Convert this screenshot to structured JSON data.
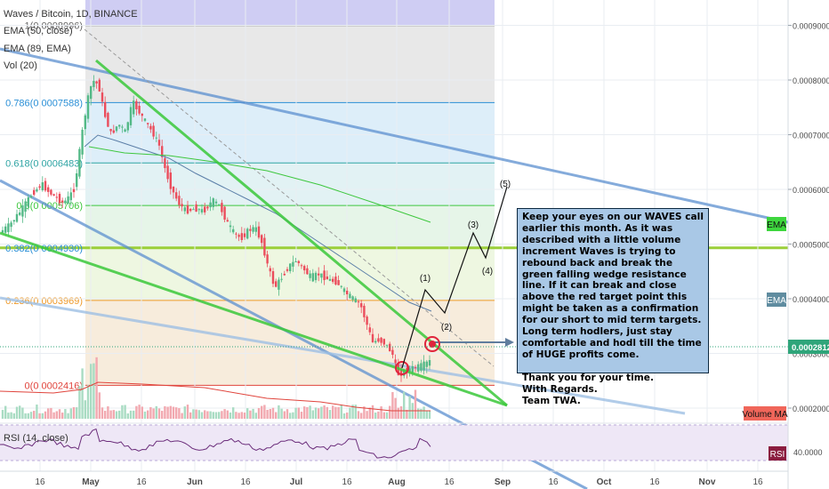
{
  "header": {
    "symbol_line": "Waves / Bitcoin, 1D, BINANCE",
    "indicators": [
      "EMA (50, close)",
      "EMA (89, EMA)",
      "Vol (20)"
    ]
  },
  "chart_data": {
    "type": "candlestick",
    "symbol": "Waves / Bitcoin",
    "interval": "1D",
    "exchange": "BINANCE",
    "x_ticks": [
      "16",
      "May",
      "16",
      "Jun",
      "16",
      "Jul",
      "16",
      "Aug",
      "16",
      "Sep",
      "16",
      "Oct",
      "16",
      "Nov",
      "16"
    ],
    "y_ticks": [
      "0.00090000",
      "0.00080000",
      "0.00070000",
      "0.00060000",
      "0.00050000",
      "0.00040000",
      "0.00030000",
      "0.00020000"
    ],
    "ylim": [
      0.00016,
      0.00095
    ],
    "current_price": "0.0002812",
    "fib_levels": [
      {
        "ratio": "1",
        "price": 0.0008996,
        "label": "1(0.0008996)"
      },
      {
        "ratio": "0.786",
        "price": 0.0007588,
        "label": "0.786(0.0007588)"
      },
      {
        "ratio": "0.618",
        "price": 0.0006483,
        "label": "0.618(0.0006483)"
      },
      {
        "ratio": "0.5",
        "price": 0.0005706,
        "label": "0.5(0.0005706)"
      },
      {
        "ratio": "0.382",
        "price": 0.000493,
        "label": "0.382(0.0004930)"
      },
      {
        "ratio": "0.236",
        "price": 0.0003969,
        "label": "0.236(0.0003969)"
      },
      {
        "ratio": "0",
        "price": 0.0002416,
        "label": "0(0.0002416)"
      }
    ],
    "axis_badges": [
      "EMA",
      "EMA",
      "Volume MA",
      "RSI"
    ],
    "wave_labels": [
      "(1)",
      "(2)",
      "(3)",
      "(4)",
      "(5)"
    ],
    "rsi_label": "RSI (14, close)",
    "rsi_tick": "40.0000",
    "grid": true
  },
  "annotation": {
    "paragraphs": [
      "Keep your eyes on our WAVES call earlier this month. As it was described with a little volume increment Waves is trying to rebound back and break the green falling wedge resistance line. If it can break and close above the red target point this might be taken as a confirmation for our short to mid term targets. Long term hodlers, just stay comfortable and hodl till the time of HUGE profits come.",
      "",
      "Thank you for your time.",
      "With Regards.",
      "Team TWA."
    ]
  },
  "colors": {
    "up": "#53b987",
    "down": "#eb4d5c",
    "fib_green": "#39c839",
    "channel_blue": "#5b8fcf",
    "ema_blue": "#5b7fa8",
    "ema_green": "#3ec73e",
    "badge_green": "#3ed63e",
    "badge_teal": "#5f8ca0",
    "badge_red": "#f0665a",
    "rsi_bg": "#eee7f6"
  }
}
